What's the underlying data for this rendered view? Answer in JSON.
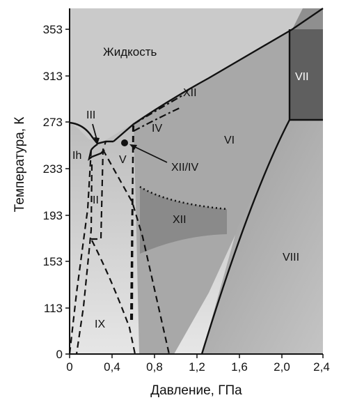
{
  "y_axis": {
    "title": "Температура, К",
    "ticks": [
      "353",
      "313",
      "273",
      "233",
      "193",
      "153",
      "113",
      "0"
    ]
  },
  "x_axis": {
    "title": "Давление, ГПа",
    "ticks": [
      "0",
      "0,4",
      "0,8",
      "1,2",
      "1,6",
      "2,0",
      "2,4"
    ]
  },
  "regions": {
    "liquid": "Жидкость",
    "ih": "Ih",
    "iii": "III",
    "ii": "II",
    "v": "V",
    "iv": "IV",
    "xii_upper": "XII",
    "xii_iv": "XII/IV",
    "vi": "VI",
    "vii": "VII",
    "xii_lower": "XII",
    "viii": "VIII",
    "ix": "IX"
  },
  "colors": {
    "background": "#b9b9b9",
    "liquid": "#c9c9c9",
    "vii": "#5f5f5f",
    "xii_patch": "#8a8a8a"
  }
}
